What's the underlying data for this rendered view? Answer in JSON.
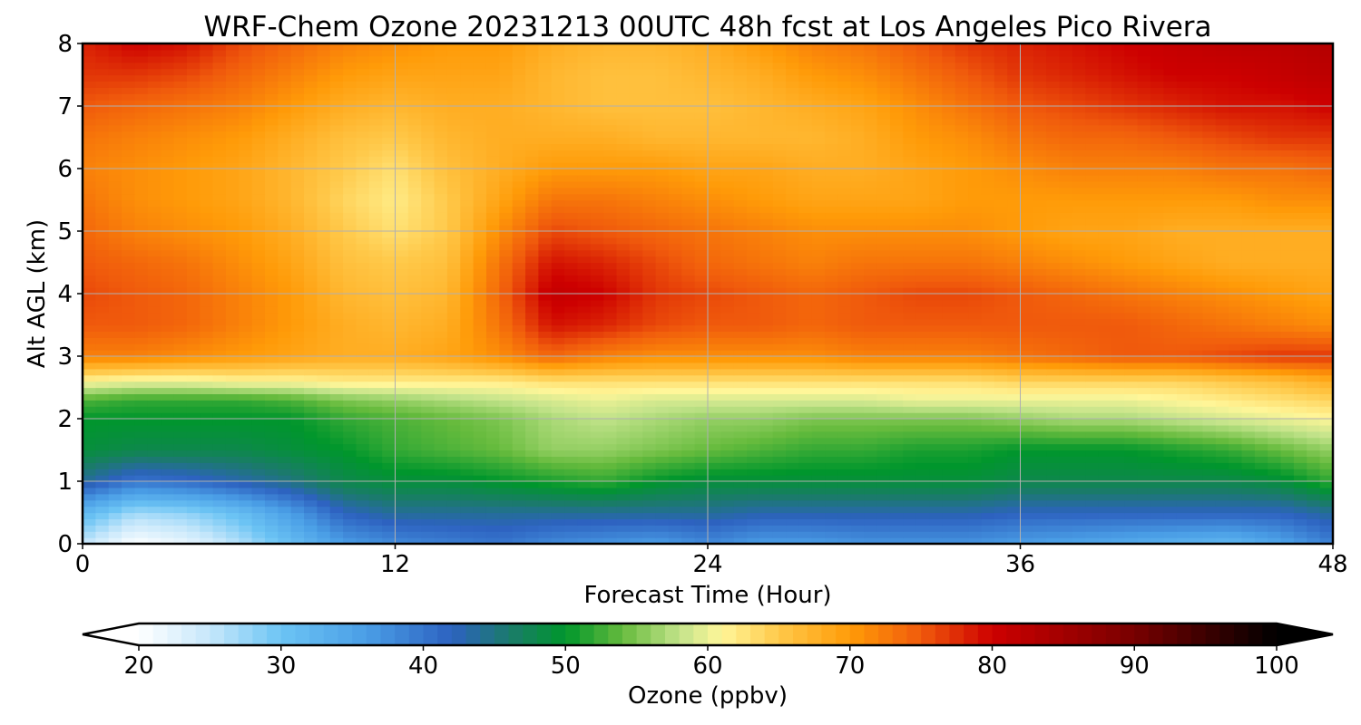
{
  "chart_data": {
    "type": "heatmap",
    "title": "WRF-Chem Ozone  20231213 00UTC 48h fcst at Los Angeles Pico Rivera",
    "xlabel": "Forecast Time (Hour)",
    "ylabel": "Alt AGL (km)",
    "xlim": [
      0,
      48
    ],
    "ylim": [
      0,
      8
    ],
    "xticks": [
      "0",
      "12",
      "24",
      "36",
      "48"
    ],
    "yticks": [
      "0",
      "1",
      "2",
      "3",
      "4",
      "5",
      "6",
      "7",
      "8"
    ],
    "grid": true,
    "x": [
      0,
      2,
      4,
      6,
      8,
      10,
      12,
      14,
      16,
      18,
      20,
      22,
      24,
      26,
      28,
      30,
      32,
      34,
      36,
      38,
      40,
      42,
      44,
      46,
      48
    ],
    "y": [
      0,
      0.5,
      1,
      1.5,
      2,
      2.3,
      2.6,
      3,
      3.5,
      4,
      4.5,
      5,
      5.5,
      6,
      6.5,
      7,
      7.5,
      8
    ],
    "z": [
      [
        25,
        20,
        22,
        26,
        31,
        36,
        38,
        39,
        40,
        38,
        37,
        36,
        38,
        36,
        36,
        37,
        37,
        37,
        36,
        35,
        34,
        33,
        32,
        35,
        39
      ],
      [
        32,
        27,
        28,
        31,
        36,
        42,
        44,
        44,
        44,
        44,
        44,
        44,
        44,
        43,
        43,
        43,
        43,
        43,
        42,
        42,
        42,
        42,
        42,
        42,
        44
      ],
      [
        44,
        40,
        41,
        43,
        45,
        48,
        49,
        49,
        50,
        51,
        52,
        50,
        49,
        49,
        49,
        49,
        49,
        49,
        48,
        48,
        48,
        48,
        48,
        49,
        52
      ],
      [
        49,
        48,
        48,
        48,
        49,
        50,
        52,
        53,
        54,
        56,
        56,
        55,
        54,
        53,
        52,
        52,
        51,
        51,
        50,
        50,
        50,
        51,
        52,
        54,
        56
      ],
      [
        50,
        50,
        50,
        50,
        50,
        52,
        53,
        54,
        55,
        57,
        58,
        57,
        56,
        56,
        55,
        55,
        55,
        55,
        56,
        57,
        57,
        58,
        59,
        60,
        61
      ],
      [
        53,
        52,
        52,
        52,
        53,
        55,
        56,
        57,
        58,
        59,
        60,
        59,
        59,
        59,
        59,
        59,
        60,
        60,
        60,
        60,
        60,
        61,
        62,
        63,
        64
      ],
      [
        61,
        60,
        60,
        61,
        61,
        62,
        62,
        62,
        62,
        63,
        63,
        63,
        63,
        63,
        63,
        63,
        63,
        63,
        64,
        64,
        64,
        64,
        65,
        66,
        68
      ],
      [
        72,
        72,
        71,
        70,
        69,
        68,
        68,
        69,
        71,
        74,
        72,
        71,
        71,
        71,
        71,
        72,
        72,
        72,
        73,
        74,
        75,
        75,
        76,
        77,
        77
      ],
      [
        75,
        75,
        74,
        72,
        70,
        68,
        67,
        68,
        73,
        79,
        78,
        76,
        75,
        75,
        74,
        75,
        75,
        75,
        75,
        75,
        75,
        74,
        73,
        72,
        71
      ],
      [
        76,
        75,
        74,
        72,
        70,
        67,
        66,
        67,
        74,
        81,
        80,
        77,
        76,
        75,
        74,
        75,
        76,
        76,
        75,
        74,
        73,
        72,
        71,
        70,
        69
      ],
      [
        75,
        74,
        73,
        71,
        69,
        66,
        65,
        66,
        73,
        79,
        78,
        76,
        74,
        73,
        72,
        73,
        73,
        73,
        72,
        71,
        70,
        69,
        68,
        68,
        68
      ],
      [
        74,
        72,
        71,
        70,
        68,
        65,
        63,
        65,
        71,
        76,
        75,
        74,
        73,
        72,
        71,
        71,
        71,
        71,
        70,
        69,
        69,
        68,
        68,
        68,
        68
      ],
      [
        73,
        71,
        70,
        69,
        67,
        64,
        62,
        65,
        69,
        73,
        73,
        72,
        71,
        70,
        69,
        69,
        69,
        70,
        70,
        70,
        70,
        70,
        70,
        71,
        71
      ],
      [
        72,
        71,
        70,
        69,
        67,
        65,
        63,
        66,
        68,
        70,
        70,
        70,
        69,
        69,
        68,
        68,
        69,
        70,
        71,
        72,
        72,
        72,
        73,
        73,
        74
      ],
      [
        73,
        72,
        71,
        70,
        68,
        66,
        65,
        67,
        68,
        68,
        68,
        67,
        67,
        67,
        67,
        68,
        70,
        71,
        73,
        74,
        74,
        75,
        76,
        77,
        77
      ],
      [
        75,
        74,
        73,
        72,
        70,
        68,
        67,
        68,
        68,
        67,
        66,
        66,
        66,
        67,
        68,
        69,
        71,
        73,
        75,
        76,
        77,
        78,
        79,
        79,
        80
      ],
      [
        77,
        77,
        76,
        74,
        72,
        70,
        69,
        69,
        69,
        67,
        66,
        66,
        67,
        68,
        70,
        71,
        73,
        75,
        77,
        78,
        79,
        80,
        80,
        81,
        82
      ],
      [
        78,
        80,
        79,
        76,
        74,
        72,
        71,
        70,
        70,
        68,
        67,
        67,
        68,
        70,
        72,
        73,
        75,
        77,
        78,
        79,
        80,
        81,
        82,
        82,
        83
      ]
    ],
    "colorbar": {
      "label": "Ozone  (ppbv)",
      "ticks": [
        "20",
        "30",
        "40",
        "50",
        "60",
        "70",
        "80",
        "90",
        "100"
      ],
      "range": [
        20,
        100
      ],
      "extend": "both",
      "stops": [
        {
          "v": 20,
          "c": "#ffffff"
        },
        {
          "v": 25,
          "c": "#c6e7fb"
        },
        {
          "v": 30,
          "c": "#6cc4f4"
        },
        {
          "v": 36,
          "c": "#4a9ee6"
        },
        {
          "v": 42,
          "c": "#2d62c0"
        },
        {
          "v": 46,
          "c": "#1b7a6c"
        },
        {
          "v": 50,
          "c": "#00962c"
        },
        {
          "v": 54,
          "c": "#66bb3d"
        },
        {
          "v": 58,
          "c": "#c2e38a"
        },
        {
          "v": 61,
          "c": "#fff699"
        },
        {
          "v": 65,
          "c": "#ffc94a"
        },
        {
          "v": 70,
          "c": "#ff9b08"
        },
        {
          "v": 75,
          "c": "#f05a0c"
        },
        {
          "v": 80,
          "c": "#cd0000"
        },
        {
          "v": 90,
          "c": "#780000"
        },
        {
          "v": 100,
          "c": "#000000"
        }
      ]
    }
  }
}
